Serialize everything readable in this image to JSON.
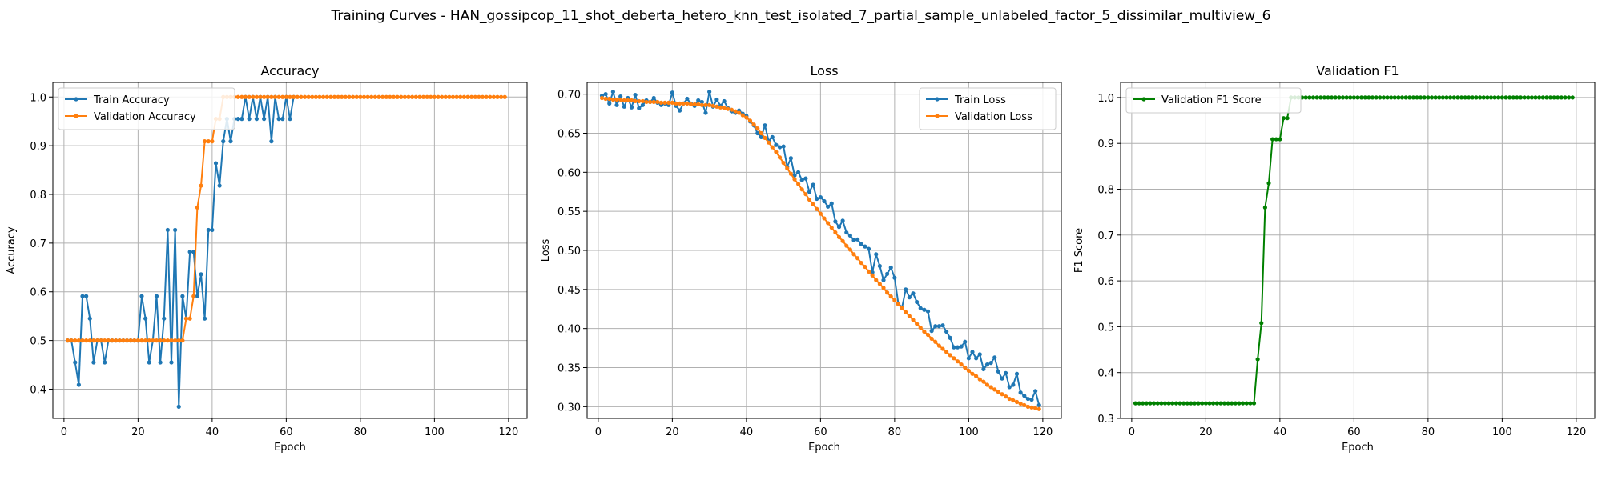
{
  "suptitle": "Training Curves - HAN_gossipcop_11_shot_deberta_hetero_knn_test_isolated_7_partial_sample_unlabeled_factor_5_dissimilar_multiview_6",
  "colors": {
    "train": "#1f77b4",
    "validation": "#ff7f0e",
    "f1": "#008000",
    "grid": "#b0b0b0",
    "axis": "#000000"
  },
  "chart_data": [
    {
      "type": "line",
      "title": "Accuracy",
      "xlabel": "Epoch",
      "ylabel": "Accuracy",
      "xlim": [
        -3,
        125
      ],
      "ylim": [
        0.34,
        1.03
      ],
      "xticks": [
        0,
        20,
        40,
        60,
        80,
        100,
        120
      ],
      "yticks": [
        0.4,
        0.5,
        0.6,
        0.7,
        0.8,
        0.9,
        1.0
      ],
      "ytick_labels": [
        "0.4",
        "0.5",
        "0.6",
        "0.7",
        "0.8",
        "0.9",
        "1.0"
      ],
      "grid": true,
      "legend_position": "upper-left",
      "series": [
        {
          "name": "Train Accuracy",
          "color": "#1f77b4",
          "x_start": 1,
          "values": [
            0.5,
            0.5,
            0.455,
            0.409,
            0.591,
            0.591,
            0.545,
            0.455,
            0.5,
            0.5,
            0.455,
            0.5,
            0.5,
            0.5,
            0.5,
            0.5,
            0.5,
            0.5,
            0.5,
            0.5,
            0.591,
            0.545,
            0.455,
            0.5,
            0.591,
            0.455,
            0.545,
            0.727,
            0.455,
            0.727,
            0.364,
            0.591,
            0.545,
            0.682,
            0.682,
            0.591,
            0.636,
            0.545,
            0.727,
            0.727,
            0.864,
            0.818,
            0.909,
            0.955,
            0.909,
            0.955,
            0.955,
            0.955,
            1.0,
            0.955,
            1.0,
            0.955,
            1.0,
            0.955,
            1.0,
            0.909,
            1.0,
            0.955,
            0.955,
            1.0,
            0.955,
            1.0
          ]
        },
        {
          "name": "Validation Accuracy",
          "color": "#ff7f0e",
          "x_start": 1,
          "values": [
            0.5,
            0.5,
            0.5,
            0.5,
            0.5,
            0.5,
            0.5,
            0.5,
            0.5,
            0.5,
            0.5,
            0.5,
            0.5,
            0.5,
            0.5,
            0.5,
            0.5,
            0.5,
            0.5,
            0.5,
            0.5,
            0.5,
            0.5,
            0.5,
            0.5,
            0.5,
            0.5,
            0.5,
            0.5,
            0.5,
            0.5,
            0.5,
            0.545,
            0.545,
            0.591,
            0.773,
            0.818,
            0.909,
            0.909,
            0.909,
            0.955,
            0.955,
            1.0,
            1.0,
            1.0,
            1.0,
            1.0,
            1.0,
            1.0,
            1.0,
            1.0,
            1.0,
            1.0,
            1.0,
            1.0,
            1.0,
            1.0,
            1.0,
            1.0,
            1.0,
            1.0,
            1.0,
            1.0,
            1.0,
            1.0,
            1.0,
            1.0,
            1.0,
            1.0,
            1.0,
            1.0,
            1.0,
            1.0,
            1.0,
            1.0,
            1.0,
            1.0,
            1.0,
            1.0,
            1.0,
            1.0,
            1.0,
            1.0,
            1.0,
            1.0,
            1.0,
            1.0,
            1.0,
            1.0,
            1.0,
            1.0,
            1.0,
            1.0,
            1.0,
            1.0,
            1.0,
            1.0,
            1.0,
            1.0,
            1.0,
            1.0,
            1.0,
            1.0,
            1.0,
            1.0,
            1.0,
            1.0,
            1.0,
            1.0,
            1.0,
            1.0,
            1.0,
            1.0,
            1.0,
            1.0,
            1.0,
            1.0,
            1.0,
            1.0
          ]
        }
      ]
    },
    {
      "type": "line",
      "title": "Loss",
      "xlabel": "Epoch",
      "ylabel": "Loss",
      "xlim": [
        -3,
        125
      ],
      "ylim": [
        0.285,
        0.715
      ],
      "xticks": [
        0,
        20,
        40,
        60,
        80,
        100,
        120
      ],
      "yticks": [
        0.3,
        0.35,
        0.4,
        0.45,
        0.5,
        0.55,
        0.6,
        0.65,
        0.7
      ],
      "ytick_labels": [
        "0.30",
        "0.35",
        "0.40",
        "0.45",
        "0.50",
        "0.55",
        "0.60",
        "0.65",
        "0.70"
      ],
      "grid": true,
      "legend_position": "upper-right",
      "series": [
        {
          "name": "Train Loss",
          "color": "#1f77b4",
          "x_start": 1,
          "values": [
            0.698,
            0.7,
            0.688,
            0.703,
            0.686,
            0.697,
            0.684,
            0.695,
            0.683,
            0.699,
            0.682,
            0.686,
            0.692,
            0.69,
            0.695,
            0.689,
            0.686,
            0.688,
            0.686,
            0.702,
            0.685,
            0.679,
            0.688,
            0.694,
            0.688,
            0.685,
            0.692,
            0.69,
            0.676,
            0.703,
            0.684,
            0.693,
            0.685,
            0.691,
            0.682,
            0.678,
            0.676,
            0.679,
            0.675,
            0.672,
            0.665,
            0.66,
            0.65,
            0.645,
            0.66,
            0.64,
            0.645,
            0.635,
            0.632,
            0.633,
            0.607,
            0.618,
            0.596,
            0.6,
            0.59,
            0.592,
            0.575,
            0.584,
            0.566,
            0.568,
            0.563,
            0.556,
            0.56,
            0.537,
            0.53,
            0.538,
            0.523,
            0.519,
            0.513,
            0.514,
            0.508,
            0.505,
            0.502,
            0.472,
            0.495,
            0.48,
            0.462,
            0.47,
            0.478,
            0.465,
            0.432,
            0.427,
            0.45,
            0.44,
            0.445,
            0.434,
            0.426,
            0.424,
            0.422,
            0.397,
            0.403,
            0.403,
            0.404,
            0.396,
            0.388,
            0.376,
            0.376,
            0.377,
            0.383,
            0.362,
            0.37,
            0.362,
            0.367,
            0.348,
            0.354,
            0.356,
            0.363,
            0.345,
            0.336,
            0.343,
            0.325,
            0.328,
            0.342,
            0.318,
            0.314,
            0.31,
            0.309,
            0.32,
            0.302
          ]
        },
        {
          "name": "Validation Loss",
          "color": "#ff7f0e",
          "x_start": 1,
          "values": [
            0.695,
            0.694,
            0.694,
            0.693,
            0.693,
            0.693,
            0.692,
            0.692,
            0.692,
            0.691,
            0.691,
            0.691,
            0.69,
            0.69,
            0.69,
            0.69,
            0.689,
            0.689,
            0.689,
            0.689,
            0.688,
            0.688,
            0.688,
            0.688,
            0.687,
            0.687,
            0.687,
            0.686,
            0.686,
            0.686,
            0.685,
            0.684,
            0.683,
            0.682,
            0.681,
            0.68,
            0.678,
            0.676,
            0.673,
            0.67,
            0.666,
            0.661,
            0.656,
            0.65,
            0.644,
            0.638,
            0.632,
            0.626,
            0.619,
            0.612,
            0.605,
            0.598,
            0.591,
            0.585,
            0.578,
            0.572,
            0.565,
            0.559,
            0.553,
            0.547,
            0.541,
            0.535,
            0.529,
            0.523,
            0.517,
            0.512,
            0.506,
            0.501,
            0.495,
            0.49,
            0.484,
            0.479,
            0.473,
            0.468,
            0.462,
            0.457,
            0.452,
            0.446,
            0.441,
            0.436,
            0.431,
            0.426,
            0.421,
            0.416,
            0.411,
            0.406,
            0.401,
            0.396,
            0.392,
            0.387,
            0.383,
            0.378,
            0.374,
            0.37,
            0.366,
            0.362,
            0.358,
            0.354,
            0.35,
            0.346,
            0.342,
            0.339,
            0.335,
            0.332,
            0.328,
            0.325,
            0.322,
            0.319,
            0.316,
            0.313,
            0.31,
            0.308,
            0.306,
            0.304,
            0.302,
            0.3,
            0.299,
            0.298,
            0.297
          ]
        }
      ]
    },
    {
      "type": "line",
      "title": "Validation F1",
      "xlabel": "Epoch",
      "ylabel": "F1 Score",
      "xlim": [
        -3,
        125
      ],
      "ylim": [
        0.3,
        1.033
      ],
      "xticks": [
        0,
        20,
        40,
        60,
        80,
        100,
        120
      ],
      "yticks": [
        0.3,
        0.4,
        0.5,
        0.6,
        0.7,
        0.8,
        0.9,
        1.0
      ],
      "ytick_labels": [
        "0.3",
        "0.4",
        "0.5",
        "0.6",
        "0.7",
        "0.8",
        "0.9",
        "1.0"
      ],
      "grid": true,
      "legend_position": "upper-left",
      "series": [
        {
          "name": "Validation F1 Score",
          "color": "#008000",
          "x_start": 1,
          "values": [
            0.333,
            0.333,
            0.333,
            0.333,
            0.333,
            0.333,
            0.333,
            0.333,
            0.333,
            0.333,
            0.333,
            0.333,
            0.333,
            0.333,
            0.333,
            0.333,
            0.333,
            0.333,
            0.333,
            0.333,
            0.333,
            0.333,
            0.333,
            0.333,
            0.333,
            0.333,
            0.333,
            0.333,
            0.333,
            0.333,
            0.333,
            0.333,
            0.333,
            0.429,
            0.508,
            0.76,
            0.813,
            0.909,
            0.909,
            0.909,
            0.955,
            0.955,
            1.0,
            1.0,
            1.0,
            1.0,
            1.0,
            1.0,
            1.0,
            1.0,
            1.0,
            1.0,
            1.0,
            1.0,
            1.0,
            1.0,
            1.0,
            1.0,
            1.0,
            1.0,
            1.0,
            1.0,
            1.0,
            1.0,
            1.0,
            1.0,
            1.0,
            1.0,
            1.0,
            1.0,
            1.0,
            1.0,
            1.0,
            1.0,
            1.0,
            1.0,
            1.0,
            1.0,
            1.0,
            1.0,
            1.0,
            1.0,
            1.0,
            1.0,
            1.0,
            1.0,
            1.0,
            1.0,
            1.0,
            1.0,
            1.0,
            1.0,
            1.0,
            1.0,
            1.0,
            1.0,
            1.0,
            1.0,
            1.0,
            1.0,
            1.0,
            1.0,
            1.0,
            1.0,
            1.0,
            1.0,
            1.0,
            1.0,
            1.0,
            1.0,
            1.0,
            1.0,
            1.0,
            1.0,
            1.0,
            1.0,
            1.0,
            1.0,
            1.0
          ]
        }
      ]
    }
  ]
}
